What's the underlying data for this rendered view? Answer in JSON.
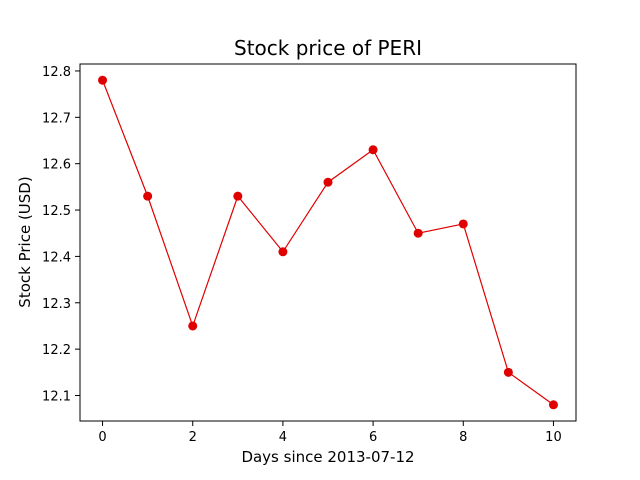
{
  "chart_data": {
    "type": "line",
    "title": "Stock price of PERI",
    "xlabel": "Days since 2013-07-12",
    "ylabel": "Stock Price (USD)",
    "x": [
      0,
      1,
      2,
      3,
      4,
      5,
      6,
      7,
      8,
      9,
      10
    ],
    "series": [
      {
        "values": [
          12.78,
          12.53,
          12.25,
          12.53,
          12.41,
          12.56,
          12.63,
          12.45,
          12.47,
          12.15,
          12.08
        ],
        "color": "#e00000",
        "marker": "circle"
      }
    ],
    "xticks": [
      0,
      2,
      4,
      6,
      8,
      10
    ],
    "xtick_labels": [
      "0",
      "2",
      "4",
      "6",
      "8",
      "10"
    ],
    "yticks": [
      12.1,
      12.2,
      12.3,
      12.4,
      12.5,
      12.6,
      12.7,
      12.8
    ],
    "ytick_labels": [
      "12.1",
      "12.2",
      "12.3",
      "12.4",
      "12.5",
      "12.6",
      "12.7",
      "12.8"
    ],
    "xlim": [
      -0.5,
      10.5
    ],
    "ylim": [
      12.045,
      12.815
    ],
    "grid": false,
    "legend": "none"
  }
}
